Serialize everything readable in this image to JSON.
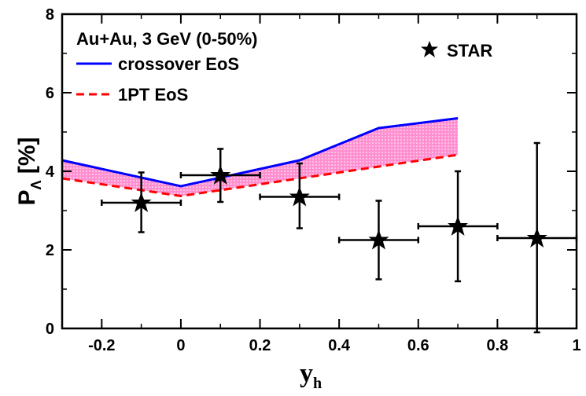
{
  "chart_data": {
    "type": "line",
    "xlabel": "y",
    "xlabel_sub": "h",
    "ylabel": "P",
    "ylabel_sub": "Λ",
    "ylabel_unit": "[%]",
    "xlim": [
      -0.3,
      1.0
    ],
    "ylim": [
      0,
      8
    ],
    "xticks": [
      "-0.2",
      "0",
      "0.2",
      "0.4",
      "0.6",
      "0.8",
      "1"
    ],
    "xtick_values": [
      -0.2,
      0,
      0.2,
      0.4,
      0.6,
      0.8,
      1.0
    ],
    "yticks": [
      "0",
      "2",
      "4",
      "6",
      "8"
    ],
    "ytick_values": [
      0,
      2,
      4,
      6,
      8
    ],
    "annotation": "Au+Au, 3 GeV (0-50%)",
    "legend_placement": "top-left",
    "series": [
      {
        "name": "crossover EoS",
        "style": "solid",
        "color": "#0000ff",
        "x": [
          -0.3,
          0,
          0.3,
          0.5,
          0.7
        ],
        "y": [
          4.28,
          3.62,
          4.28,
          5.1,
          5.35
        ]
      },
      {
        "name": "1PT EoS",
        "style": "dashed",
        "color": "#ff0000",
        "x": [
          -0.3,
          0,
          0.3,
          0.5,
          0.7
        ],
        "y": [
          3.82,
          3.37,
          3.82,
          4.12,
          4.42
        ]
      },
      {
        "name": "STAR",
        "style": "star-markers",
        "color": "#000000",
        "x": [
          -0.1,
          0.1,
          0.3,
          0.5,
          0.7,
          0.9
        ],
        "y": [
          3.2,
          3.9,
          3.35,
          2.25,
          2.6,
          2.3
        ],
        "xerr": [
          0.1,
          0.1,
          0.1,
          0.1,
          0.1,
          0.1
        ],
        "yerr_low": [
          0.75,
          0.68,
          0.8,
          1.0,
          1.4,
          2.4
        ],
        "yerr_high": [
          0.77,
          0.67,
          0.85,
          1.0,
          1.4,
          2.42
        ]
      }
    ],
    "band": {
      "between": [
        "crossover EoS",
        "1PT EoS"
      ],
      "color": "#ff88cc",
      "pattern": "dotted"
    }
  }
}
